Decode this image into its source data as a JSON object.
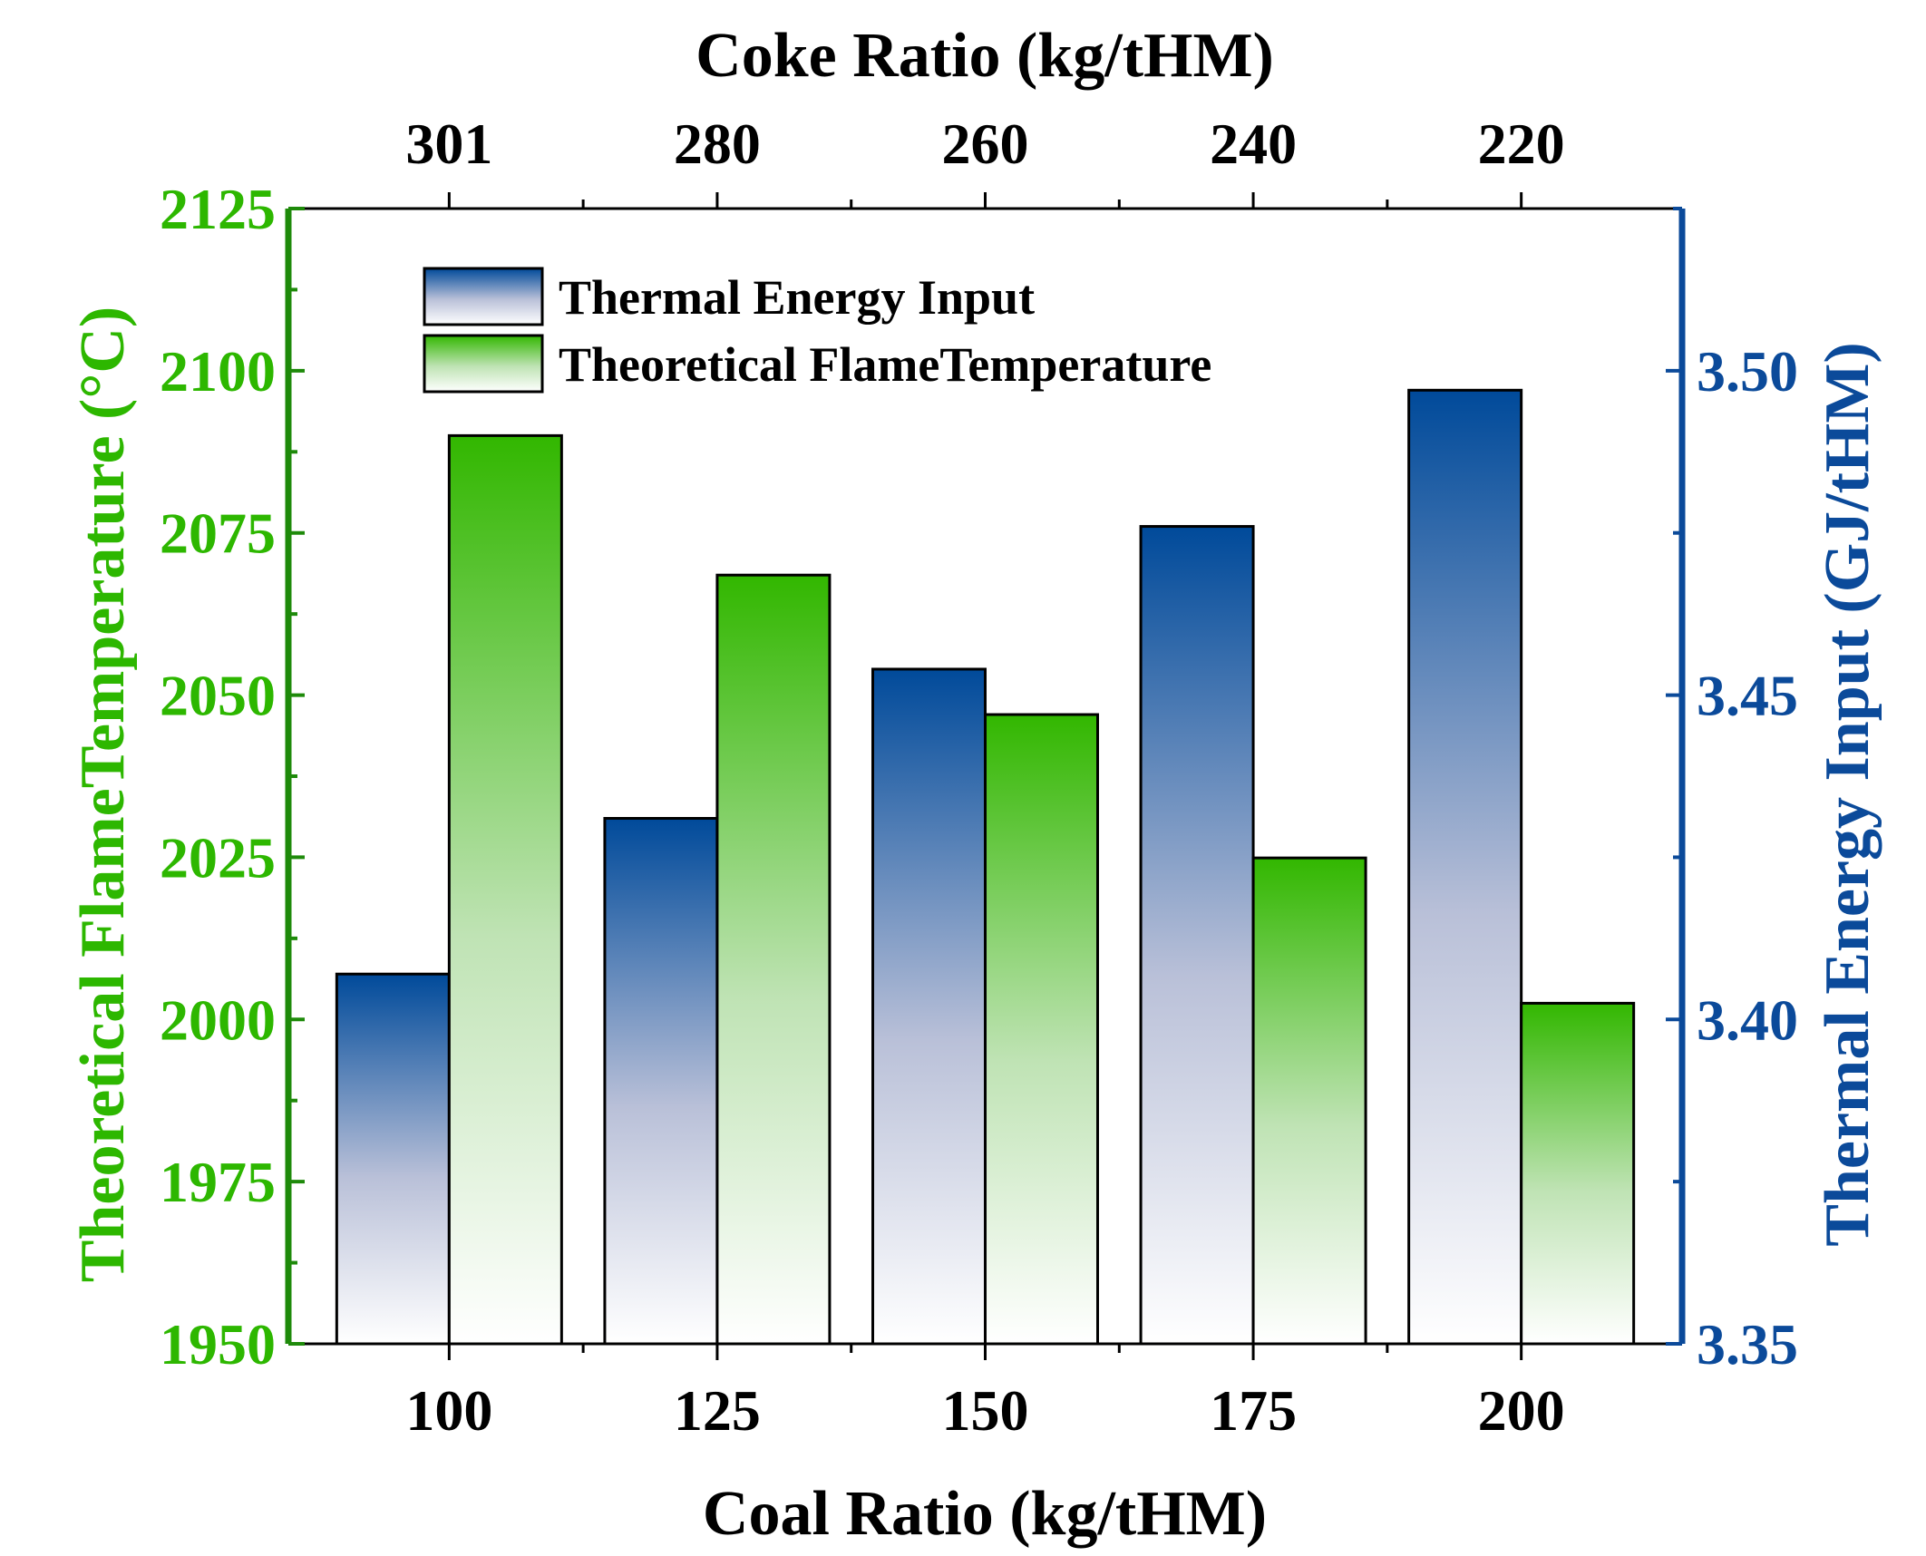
{
  "chart_data": {
    "type": "bar",
    "top_axis": {
      "title": "Coke Ratio (kg/tHM)",
      "tick_labels": [
        "301",
        "280",
        "260",
        "240",
        "220"
      ]
    },
    "bottom_axis": {
      "title": "Coal Ratio (kg/tHM)",
      "tick_labels": [
        "100",
        "125",
        "150",
        "175",
        "200"
      ]
    },
    "x": [
      100,
      125,
      150,
      175,
      200
    ],
    "left_axis": {
      "title": "Theoretical FlameTemperature (°C)",
      "ylim": [
        1950,
        2125
      ],
      "ticks": [
        1950,
        1975,
        2000,
        2025,
        2050,
        2075,
        2100,
        2125
      ],
      "tick_labels": [
        "1950",
        "1975",
        "2000",
        "2025",
        "2050",
        "2075",
        "2100",
        "2125"
      ],
      "color": "#2db700"
    },
    "right_axis": {
      "title": "Thermal Energy Input (GJ/tHM)",
      "ylim": [
        3.35,
        3.525
      ],
      "ticks": [
        3.35,
        3.4,
        3.45,
        3.5
      ],
      "tick_labels": [
        "3.35",
        "3.40",
        "3.45",
        "3.50"
      ],
      "color": "#0b4a9a"
    },
    "series": [
      {
        "name": "Thermal Energy Input",
        "axis": "right",
        "values": [
          3.407,
          3.431,
          3.454,
          3.476,
          3.497
        ],
        "color_top": "#004a9a",
        "color_bottom": "#ffffff"
      },
      {
        "name": "Theoretical FlameTemperature",
        "axis": "left",
        "values": [
          2090,
          2068.5,
          2047,
          2024.9,
          2002.5
        ],
        "color_top": "#32b700",
        "color_bottom": "#ffffff"
      }
    ],
    "legend_position": "top-left",
    "grid": false
  }
}
